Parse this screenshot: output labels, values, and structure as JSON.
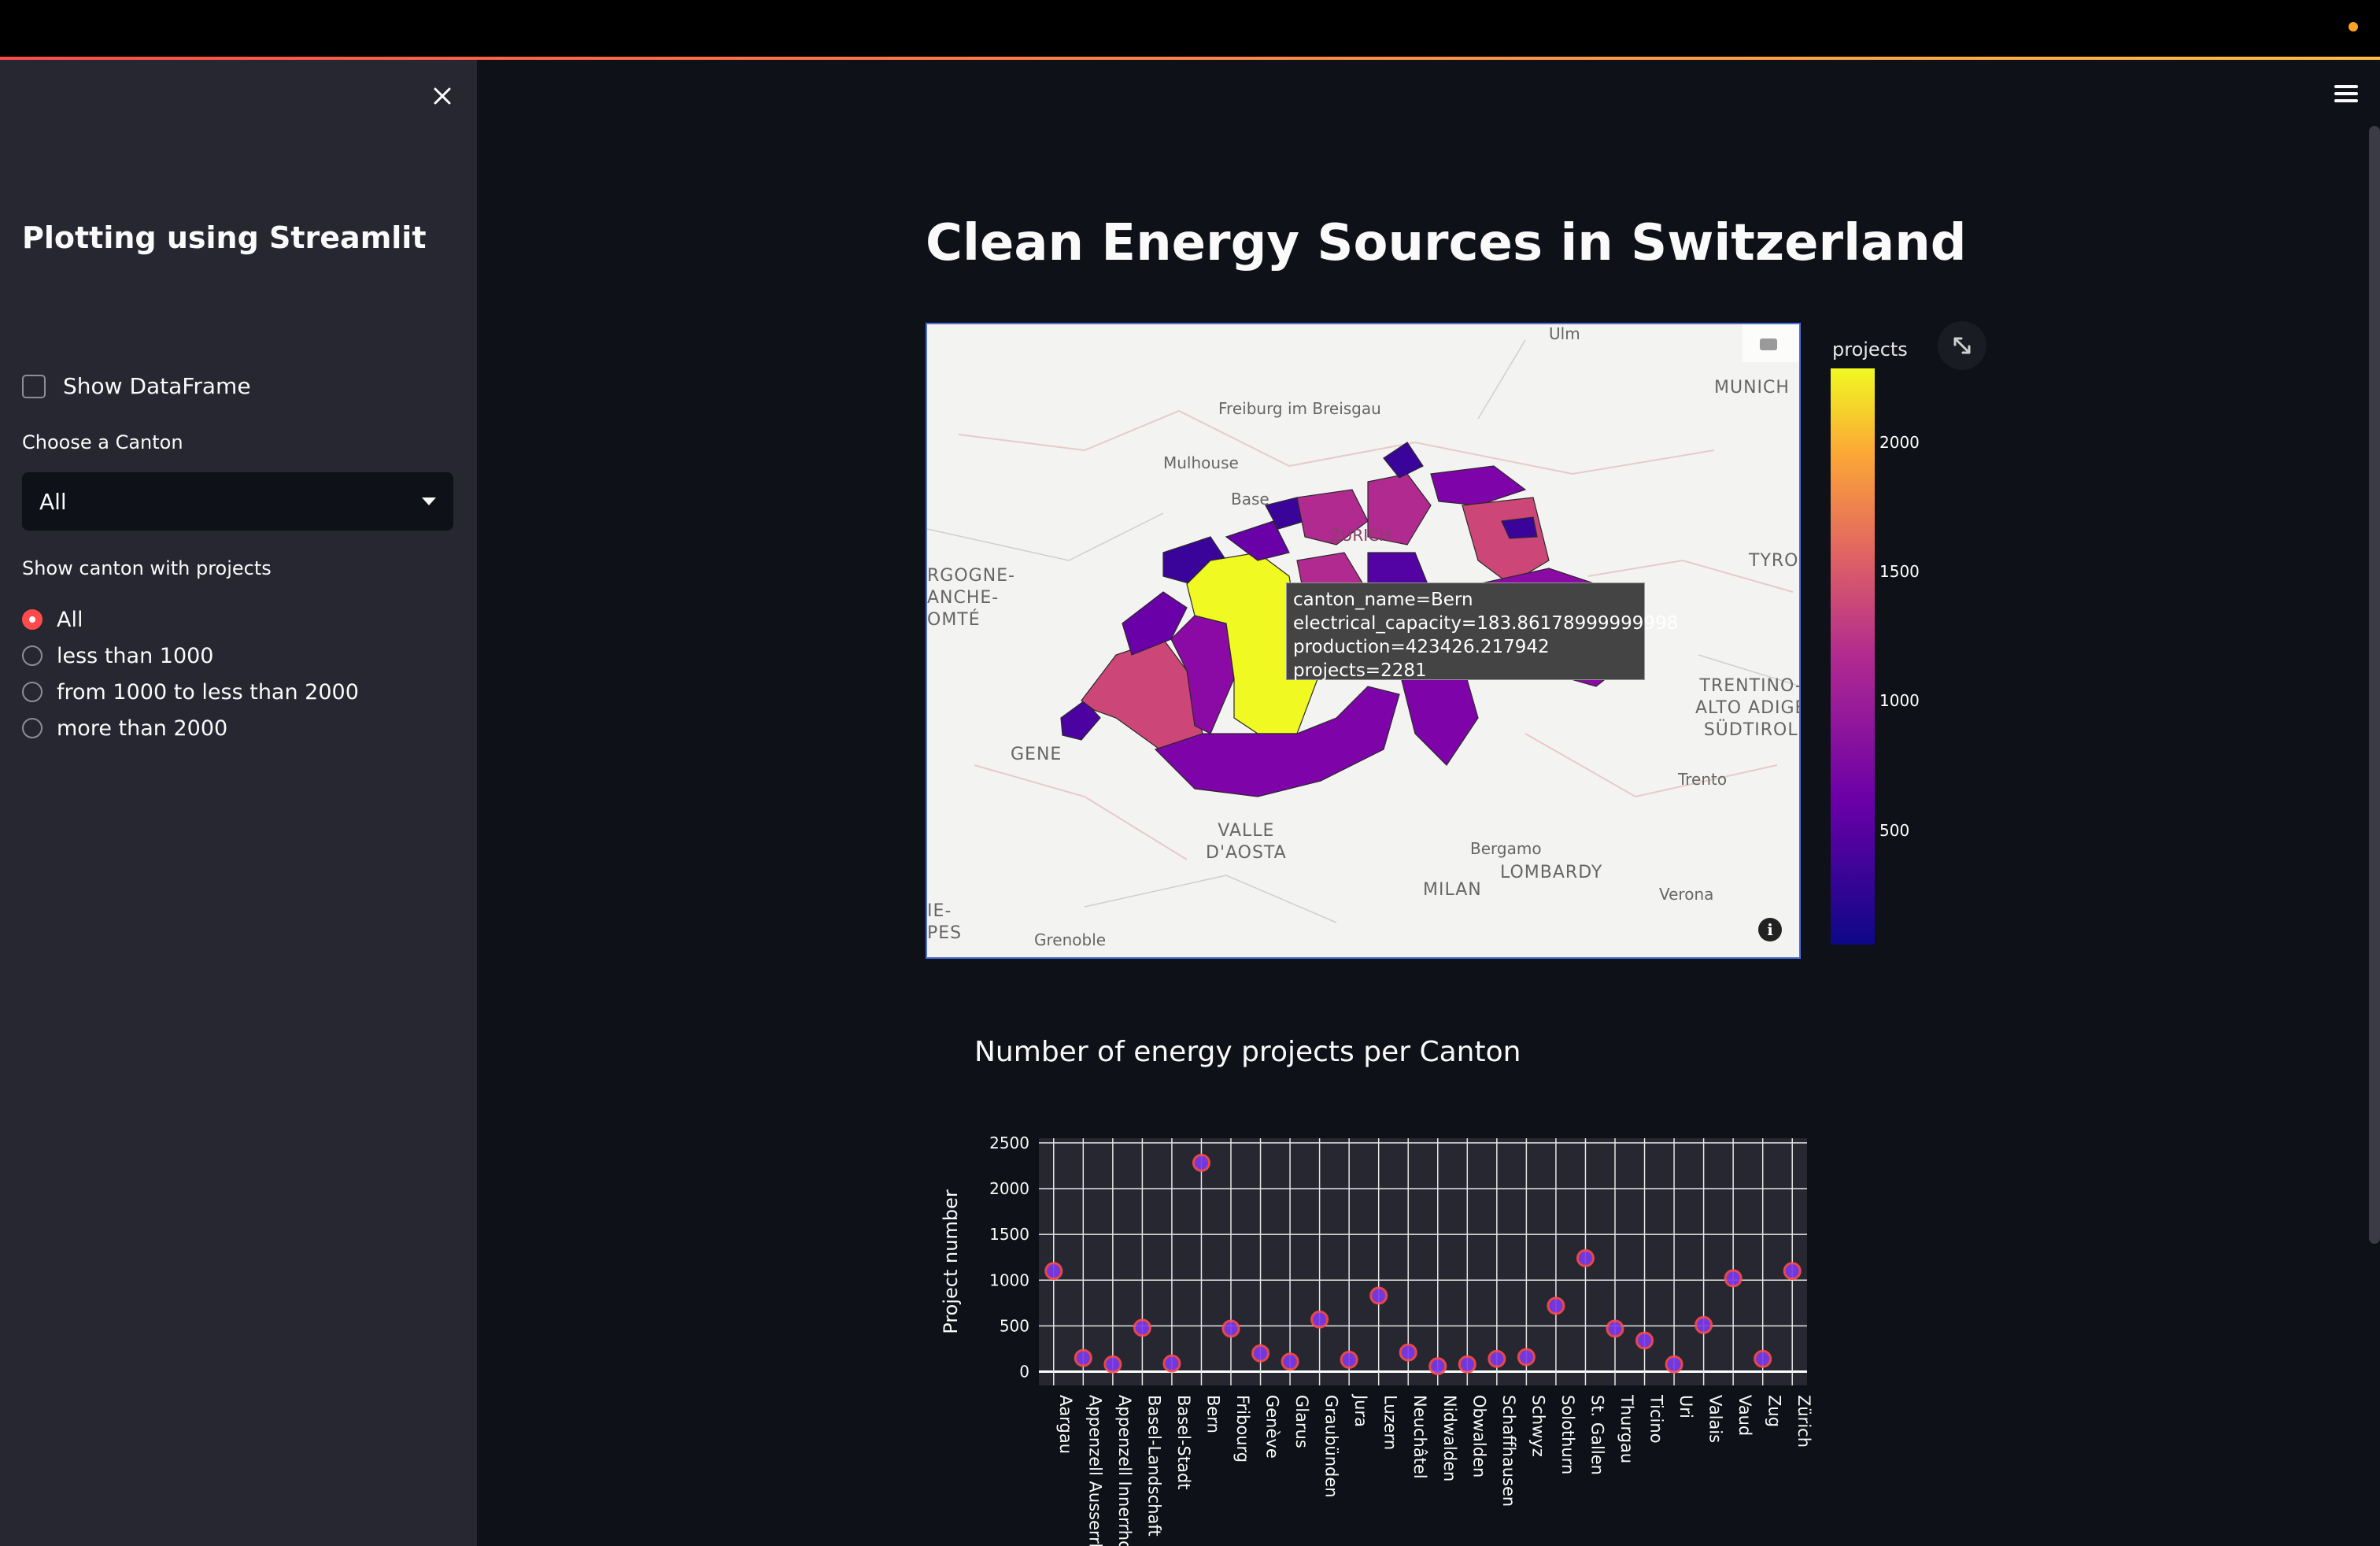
{
  "sidebar": {
    "title": "Plotting using Streamlit",
    "show_dataframe_label": "Show DataFrame",
    "choose_canton_label": "Choose a Canton",
    "canton_select_value": "All",
    "projects_label": "Show canton with projects",
    "radio_options": [
      "All",
      "less than 1000",
      "from 1000 to less than 2000",
      "more than 2000"
    ],
    "radio_selected": 0
  },
  "main": {
    "title": "Clean Energy Sources in Switzerland"
  },
  "map": {
    "tooltip": {
      "line1": "canton_name=Bern",
      "line2": "electrical_capacity=183.86178999999998",
      "line3": "production=423426.217942",
      "line4": "projects=2281"
    },
    "colorbar_title": "projects",
    "colorbar_ticks": [
      "2000",
      "1500",
      "1000",
      "500"
    ],
    "labels": {
      "freiburg": "Freiburg im Breisgau",
      "mulhouse": "Mulhouse",
      "ulm": "Ulm",
      "munich": "MUNICH",
      "bourgogne": "RGOGNE-\nANCHE-\nOMTÉ",
      "tyrol": "TYRO",
      "trentino": "TRENTINO-\nALTO ADIGE\nSÜDTIROL",
      "trento": "Trento",
      "geneva": "GENE",
      "valle": "VALLE\nD'AOSTA",
      "bergamo": "Bergamo",
      "lombardy": "LOMBARDY",
      "milan": "MILAN",
      "verona": "Verona",
      "grenoble": "Grenoble",
      "alpes": "IE-\nPES",
      "basel": "Base",
      "zurich": "ZURICH"
    }
  },
  "chart_data": {
    "type": "scatter",
    "title": "Number of energy projects per Canton",
    "xlabel": "",
    "ylabel": "Project number",
    "ylim": [
      -150,
      2550
    ],
    "yticks": [
      0,
      500,
      1000,
      1500,
      2000,
      2500
    ],
    "categories": [
      "Aargau",
      "Appenzell Ausserrhoden",
      "Appenzell Innerrhoden",
      "Basel-Landschaft",
      "Basel-Stadt",
      "Bern",
      "Fribourg",
      "Genève",
      "Glarus",
      "Graubünden",
      "Jura",
      "Luzern",
      "Neuchâtel",
      "Nidwalden",
      "Obwalden",
      "Schaffhausen",
      "Schwyz",
      "Solothurn",
      "St. Gallen",
      "Thurgau",
      "Ticino",
      "Uri",
      "Valais",
      "Vaud",
      "Zug",
      "Zürich"
    ],
    "values": [
      1100,
      150,
      80,
      480,
      90,
      2281,
      470,
      200,
      110,
      570,
      130,
      830,
      210,
      60,
      80,
      140,
      160,
      720,
      1240,
      470,
      340,
      80,
      510,
      1020,
      140,
      1100
    ],
    "marker_color": "#7c3aed",
    "marker_edge": "#ff4b4b",
    "grid": true
  }
}
